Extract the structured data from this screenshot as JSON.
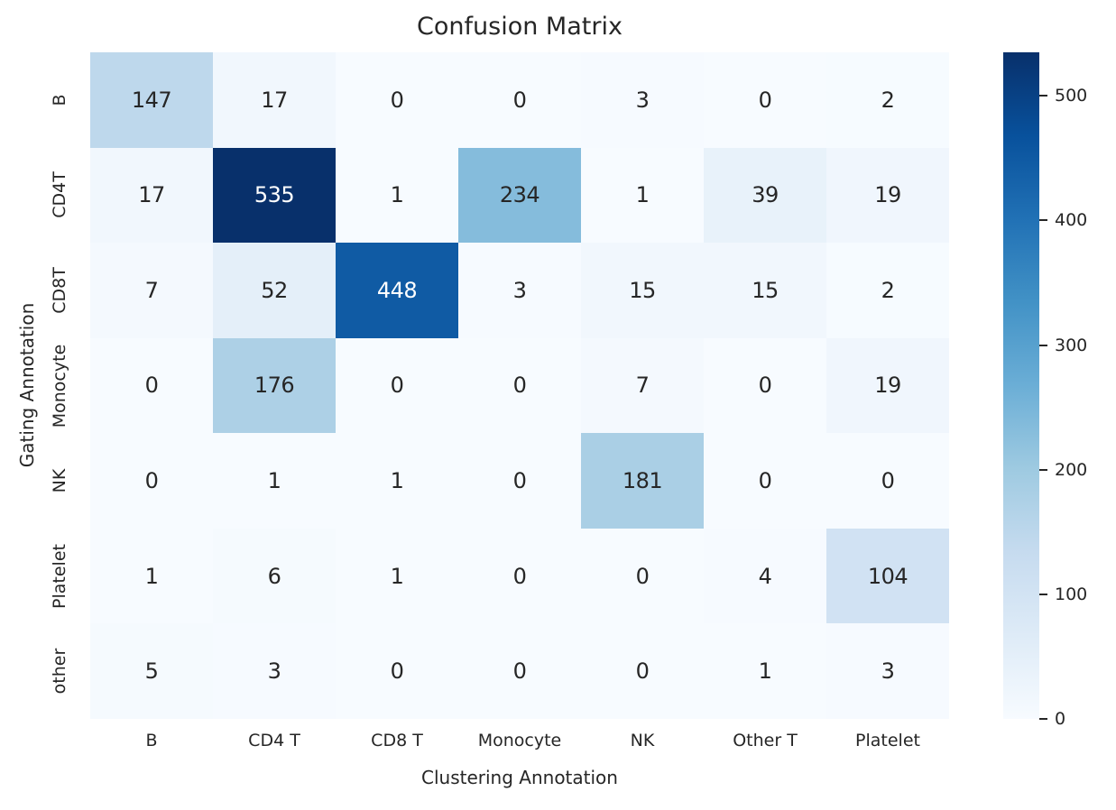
{
  "title": "Confusion Matrix",
  "chart_data": {
    "type": "heatmap",
    "title": "Confusion Matrix",
    "xlabel": "Clustering Annotation",
    "ylabel": "Gating Annotation",
    "x_categories": [
      "B",
      "CD4 T",
      "CD8 T",
      "Monocyte",
      "NK",
      "Other T",
      "Platelet"
    ],
    "y_categories": [
      "B",
      "CD4T",
      "CD8T",
      "Monocyte",
      "NK",
      "Platelet",
      "other"
    ],
    "matrix": [
      [
        147,
        17,
        0,
        0,
        3,
        0,
        2
      ],
      [
        17,
        535,
        1,
        234,
        1,
        39,
        19
      ],
      [
        7,
        52,
        448,
        3,
        15,
        15,
        2
      ],
      [
        0,
        176,
        0,
        0,
        7,
        0,
        19
      ],
      [
        0,
        1,
        1,
        0,
        181,
        0,
        0
      ],
      [
        1,
        6,
        1,
        0,
        0,
        4,
        104
      ],
      [
        5,
        3,
        0,
        0,
        0,
        1,
        3
      ]
    ],
    "vmin": 0,
    "vmax": 535,
    "colormap": "Blues",
    "colorbar_ticks": [
      0,
      100,
      200,
      300,
      400,
      500
    ],
    "legend_position": "right-colorbar",
    "grid": false,
    "colors": {
      "cmap_anchors": [
        "#f7fbff",
        "#deebf7",
        "#c6dbef",
        "#9ecae1",
        "#6baed6",
        "#4292c6",
        "#2171b5",
        "#08519c",
        "#08306b"
      ],
      "text": "#262626",
      "annot_dark_cells": "#ffffff",
      "background": "#ffffff"
    }
  }
}
